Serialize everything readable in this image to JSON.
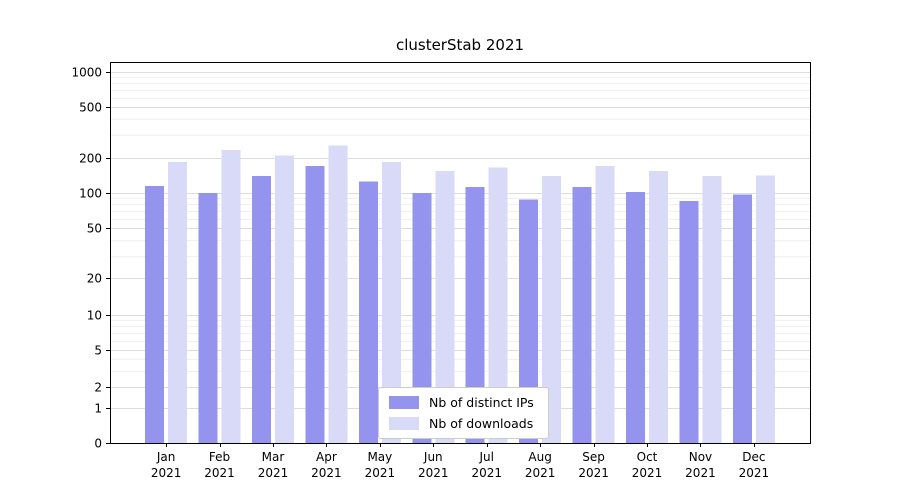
{
  "chart_data": {
    "type": "bar",
    "title": "clusterStab 2021",
    "categories": [
      "Jan 2021",
      "Feb 2021",
      "Mar 2021",
      "Apr 2021",
      "May 2021",
      "Jun 2021",
      "Jul 2021",
      "Aug 2021",
      "Sep 2021",
      "Oct 2021",
      "Nov 2021",
      "Dec 2021"
    ],
    "series": [
      {
        "name": "Nb of distinct IPs",
        "color": "#9494ef",
        "values": [
          115,
          100,
          140,
          170,
          125,
          100,
          113,
          88,
          113,
          102,
          85,
          97
        ]
      },
      {
        "name": "Nb of downloads",
        "color": "#d9d9f8",
        "values": [
          185,
          230,
          210,
          250,
          185,
          155,
          165,
          140,
          170,
          155,
          140,
          142
        ]
      }
    ],
    "yticks": [
      0,
      1,
      2,
      5,
      10,
      20,
      50,
      100,
      200,
      500,
      1000
    ],
    "yscale": "symlog",
    "grid": true,
    "legend_position": "lower center"
  }
}
